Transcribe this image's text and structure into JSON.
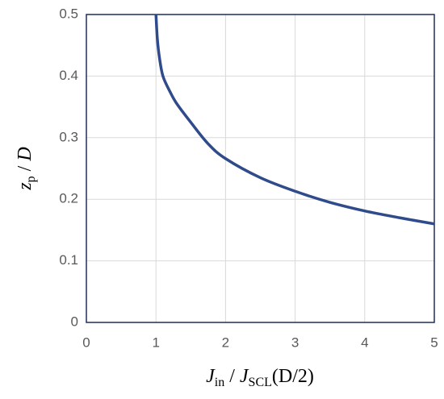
{
  "chart_data": {
    "type": "line",
    "x": [
      1,
      1.02,
      1.05,
      1.1,
      1.2,
      1.3,
      1.5,
      1.75,
      2,
      2.5,
      3,
      3.5,
      4,
      4.5,
      5
    ],
    "values": [
      0.5,
      0.46,
      0.43,
      0.4,
      0.375,
      0.355,
      0.325,
      0.29,
      0.266,
      0.235,
      0.213,
      0.195,
      0.181,
      0.17,
      0.16
    ],
    "color": "#2f4b8c",
    "xlim": [
      0,
      5
    ],
    "xticks": [
      0,
      1,
      2,
      3,
      4,
      5
    ],
    "ylim": [
      0,
      0.5
    ],
    "yticks": [
      0,
      0.1,
      0.2,
      0.3,
      0.4,
      0.5
    ],
    "grid": true,
    "xlabel": [
      "J",
      "in",
      " / ",
      "J",
      "SCL",
      "(D/2)"
    ],
    "ylabel": [
      "z",
      "p",
      " / ",
      "D"
    ]
  }
}
